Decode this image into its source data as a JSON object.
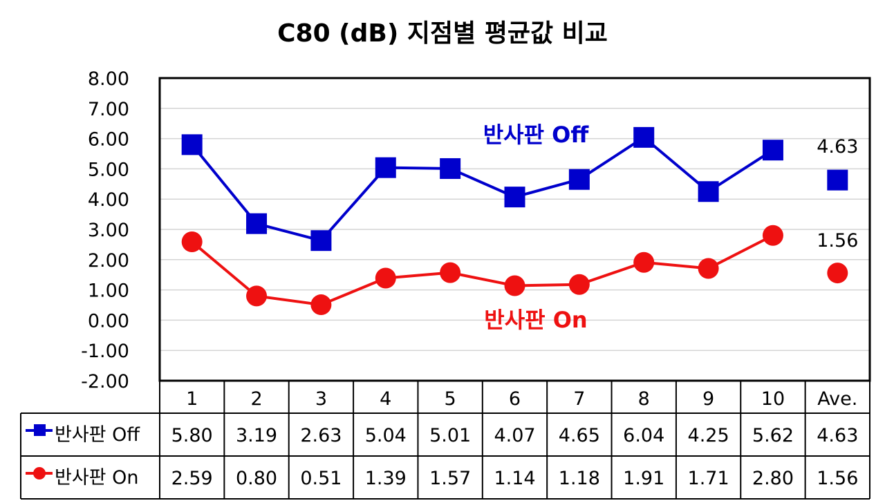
{
  "chart_data": {
    "type": "line",
    "title": "C80 (dB) 지점별 평균값 비교",
    "categories": [
      "1",
      "2",
      "3",
      "4",
      "5",
      "6",
      "7",
      "8",
      "9",
      "10",
      "Ave."
    ],
    "ylim": [
      -2.0,
      8.0
    ],
    "ystep": 1.0,
    "ytick_labels": [
      "8.00",
      "7.00",
      "6.00",
      "5.00",
      "4.00",
      "3.00",
      "2.00",
      "1.00",
      "0.00",
      "-1.00",
      "-2.00"
    ],
    "grid": true,
    "legend": "data-table",
    "series": [
      {
        "name": "반사판 Off",
        "color": "#0000cc",
        "marker": "square",
        "values": [
          5.8,
          3.19,
          2.63,
          5.04,
          5.01,
          4.07,
          4.65,
          6.04,
          4.25,
          5.62,
          4.63
        ],
        "labels": [
          "5.80",
          "3.19",
          "2.63",
          "5.04",
          "5.01",
          "4.07",
          "4.65",
          "6.04",
          "4.25",
          "5.62",
          "4.63"
        ],
        "annotation": "반사판 Off",
        "avg_label": "4.63"
      },
      {
        "name": "반사판 On",
        "color": "#ee1111",
        "marker": "circle",
        "values": [
          2.59,
          0.8,
          0.51,
          1.39,
          1.57,
          1.14,
          1.18,
          1.91,
          1.71,
          2.8,
          1.56
        ],
        "labels": [
          "2.59",
          "0.80",
          "0.51",
          "1.39",
          "1.57",
          "1.14",
          "1.18",
          "1.91",
          "1.71",
          "2.80",
          "1.56"
        ],
        "annotation": "반사판 On",
        "avg_label": "1.56"
      }
    ]
  }
}
